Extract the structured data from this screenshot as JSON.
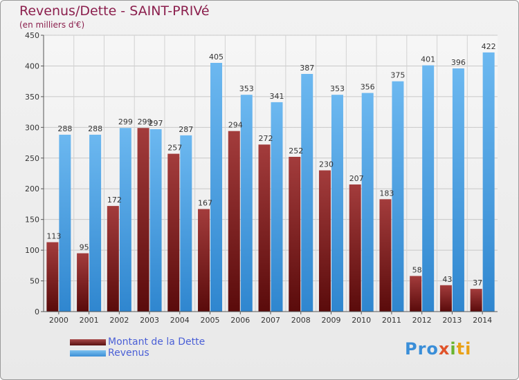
{
  "chart_data": {
    "type": "bar",
    "title": "Revenus/Dette - SAINT-PRIVé",
    "subtitle": "(en milliers d'€)",
    "categories": [
      "2000",
      "2001",
      "2002",
      "2003",
      "2004",
      "2005",
      "2006",
      "2007",
      "2008",
      "2009",
      "2010",
      "2011",
      "2012",
      "2013",
      "2014"
    ],
    "series": [
      {
        "name": "Montant de la Dette",
        "values": [
          113,
          95,
          172,
          299,
          257,
          167,
          294,
          272,
          252,
          230,
          207,
          183,
          58,
          43,
          37
        ],
        "color": "#7a1f1f"
      },
      {
        "name": "Revenus",
        "values": [
          288,
          288,
          299,
          297,
          287,
          405,
          353,
          341,
          387,
          353,
          356,
          375,
          401,
          396,
          422
        ],
        "color": "#4aa3e6"
      }
    ],
    "ylim": [
      0,
      450
    ],
    "yticks": [
      0,
      50,
      100,
      150,
      200,
      250,
      300,
      350,
      400,
      450
    ],
    "grid": true,
    "legend_position": "bottom-left"
  },
  "logo_text": [
    "Pro",
    "x",
    "i",
    "ti"
  ]
}
